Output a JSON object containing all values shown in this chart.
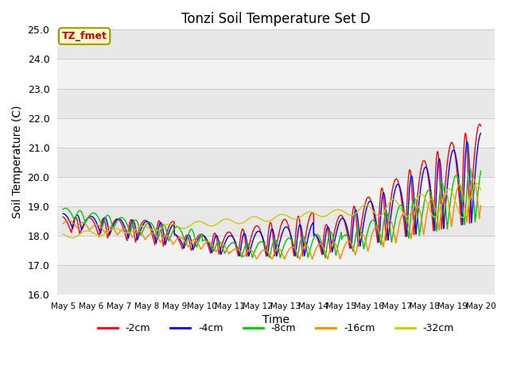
{
  "title": "Tonzi Soil Temperature Set D",
  "xlabel": "Time",
  "ylabel": "Soil Temperature (C)",
  "ylim": [
    16.0,
    25.0
  ],
  "annotation": "TZ_fmet",
  "legend": [
    "-2cm",
    "-4cm",
    "-8cm",
    "-16cm",
    "-32cm"
  ],
  "line_colors": [
    "#ff0000",
    "#0000ff",
    "#00cc00",
    "#ff8800",
    "#cccc00"
  ],
  "xtick_labels": [
    "May 5",
    "May 6",
    "May 7",
    "May 8",
    "May 9",
    "May 10",
    "May 11",
    "May 12",
    "May 13",
    "May 14",
    "May 15",
    "May 16",
    "May 17",
    "May 18",
    "May 19",
    "May 20"
  ],
  "linewidth": 1.0,
  "n_points": 3000
}
